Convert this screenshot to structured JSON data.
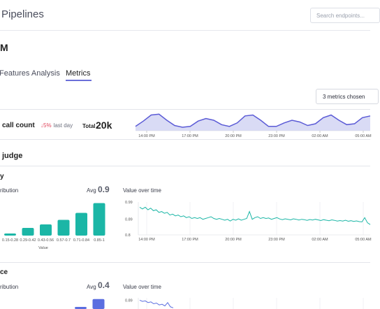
{
  "header": {
    "title": "Pipelines",
    "search_placeholder": "Search endpoints..."
  },
  "model": {
    "name": "M"
  },
  "tabs": [
    {
      "label": "Features Analysis",
      "active": false
    },
    {
      "label": "Metrics",
      "active": true
    }
  ],
  "metrics_selector": {
    "label": "3 metrics chosen"
  },
  "call_count": {
    "label": "call count",
    "delta_arrow": "↓",
    "delta_value": "5%",
    "delta_suffix": "last day",
    "total_label": "Total",
    "total_value": "20k",
    "x_ticks": [
      "14:00 PM",
      "17:00 PM",
      "20:00 PM",
      "23:00 PM",
      "02:00 AM",
      "05:00 AM"
    ],
    "sparkline": [
      0.25,
      0.55,
      0.9,
      0.95,
      0.6,
      0.3,
      0.2,
      0.25,
      0.55,
      0.7,
      0.6,
      0.35,
      0.25,
      0.45,
      0.85,
      0.9,
      0.6,
      0.25,
      0.25,
      0.45,
      0.6,
      0.5,
      0.3,
      0.4,
      0.75,
      0.9,
      0.6,
      0.35,
      0.4,
      0.75,
      0.85
    ],
    "colors": {
      "line": "#5b5bd6",
      "fill": "#d9dbf5"
    }
  },
  "section": {
    "title": "judge"
  },
  "metric_cards": [
    {
      "title": "y",
      "distribution_label": "ribution",
      "avg_label": "Avg",
      "avg_value": "0.9",
      "over_time_label": "Value over time",
      "chart_data": [
        {
          "type": "bar",
          "categories": [
            "0.15-0.28",
            "0.29-0.42",
            "0.43-0.56",
            "0.57-0.7",
            "0.71-0.84",
            "0.85-1"
          ],
          "values": [
            0.06,
            0.22,
            0.32,
            0.45,
            0.65,
            0.93
          ],
          "xlabel": "Value",
          "color": "#1bb6a6"
        },
        {
          "type": "line",
          "x_ticks": [
            "14:00 PM",
            "17:00 PM",
            "20:00 PM",
            "23:00 PM",
            "02:00 AM",
            "05:00 AM"
          ],
          "y_ticks": [
            "0.99",
            "0.89",
            "0.8"
          ],
          "ylim": [
            0.8,
            0.99
          ],
          "values": [
            0.96,
            0.95,
            0.96,
            0.945,
            0.955,
            0.94,
            0.945,
            0.93,
            0.935,
            0.925,
            0.93,
            0.915,
            0.92,
            0.91,
            0.915,
            0.905,
            0.91,
            0.9,
            0.905,
            0.895,
            0.9,
            0.895,
            0.9,
            0.89,
            0.895,
            0.9,
            0.905,
            0.895,
            0.89,
            0.895,
            0.89,
            0.885,
            0.89,
            0.88,
            0.89,
            0.885,
            0.893,
            0.885,
            0.89,
            0.895,
            0.935,
            0.89,
            0.9,
            0.905,
            0.895,
            0.9,
            0.895,
            0.898,
            0.89,
            0.895,
            0.9,
            0.892,
            0.888,
            0.893,
            0.89,
            0.887,
            0.893,
            0.89,
            0.886,
            0.89,
            0.888,
            0.884,
            0.889,
            0.886,
            0.89,
            0.887,
            0.883,
            0.888,
            0.885,
            0.882,
            0.887,
            0.884,
            0.88,
            0.883,
            0.88,
            0.885,
            0.879,
            0.882,
            0.878,
            0.881,
            0.877,
            0.875,
            0.9,
            0.87,
            0.86
          ],
          "color": "#1bb6a6"
        }
      ]
    },
    {
      "title": "ce",
      "distribution_label": "ribution",
      "avg_label": "Avg",
      "avg_value": "0.4",
      "over_time_label": "Value over time",
      "chart_data": [
        {
          "type": "bar",
          "categories": [
            "",
            ""
          ],
          "values": [
            0.2,
            0.95
          ],
          "color": "#5b6ee0"
        },
        {
          "type": "line",
          "y_ticks": [
            "0.89"
          ],
          "ylim": [
            0.8,
            0.9
          ],
          "values": [
            0.89,
            0.885,
            0.887,
            0.88,
            0.883,
            0.875,
            0.878,
            0.87,
            0.873,
            0.866,
            0.88,
            0.862,
            0.858
          ],
          "color": "#5b6ee0"
        }
      ]
    }
  ]
}
